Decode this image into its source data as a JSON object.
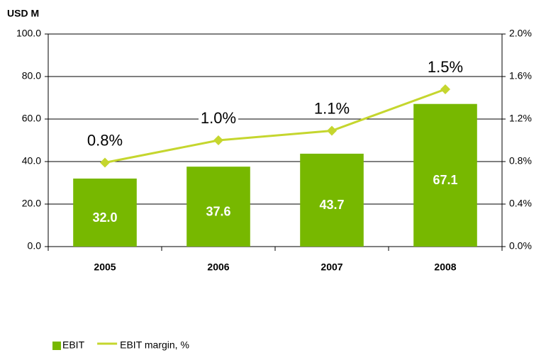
{
  "chart_data": {
    "type": "bar",
    "y_label": "USD M",
    "categories": [
      "2005",
      "2006",
      "2007",
      "2008"
    ],
    "series": [
      {
        "name": "EBIT",
        "color": "#77b800",
        "values": [
          32.0,
          37.6,
          43.7,
          67.1
        ],
        "value_labels": [
          "32.0",
          "37.6",
          "43.7",
          "67.1"
        ]
      },
      {
        "name": "EBIT margin, %",
        "type": "line",
        "axis": "y2",
        "color": "#c5d62e",
        "values": [
          0.79,
          1.0,
          1.09,
          1.48
        ],
        "value_labels": [
          "0.8%",
          "1.0%",
          "1.1%",
          "1.5%"
        ]
      }
    ],
    "ylim": [
      0,
      100
    ],
    "yticks": [
      {
        "value": 0,
        "label": "0.0"
      },
      {
        "value": 20,
        "label": "20.0"
      },
      {
        "value": 40,
        "label": "40.0"
      },
      {
        "value": 60,
        "label": "60.0"
      },
      {
        "value": 80,
        "label": "80.0"
      },
      {
        "value": 100,
        "label": "100.0"
      }
    ],
    "y2lim": [
      0,
      2
    ],
    "y2ticks": [
      {
        "value": 0,
        "label": "0.0%"
      },
      {
        "value": 0.4,
        "label": "0.4%"
      },
      {
        "value": 0.8,
        "label": "0.8%"
      },
      {
        "value": 1.2,
        "label": "1.2%"
      },
      {
        "value": 1.6,
        "label": "1.6%"
      },
      {
        "value": 2,
        "label": "2.0%"
      }
    ],
    "grid": true,
    "legend": "bottom-left"
  }
}
